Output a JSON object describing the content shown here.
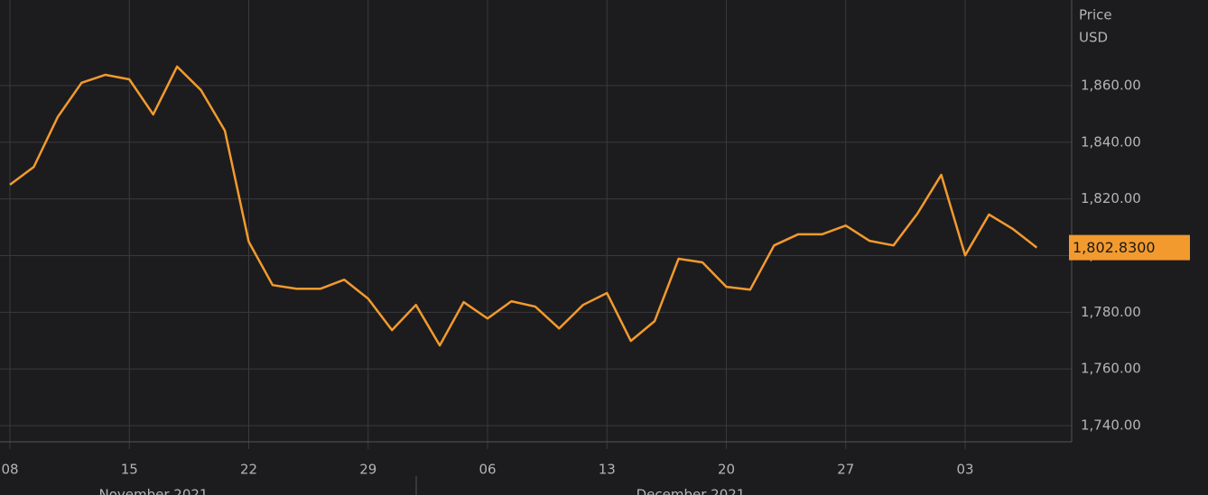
{
  "chart_data": {
    "type": "line",
    "y_axis_title": [
      "Price",
      "USD"
    ],
    "categories": [
      "08",
      null,
      null,
      null,
      null,
      "15",
      null,
      null,
      null,
      null,
      "22",
      null,
      null,
      null,
      null,
      "29",
      null,
      null,
      null,
      null,
      "06",
      null,
      null,
      null,
      null,
      "13",
      null,
      null,
      null,
      null,
      "20",
      null,
      null,
      null,
      null,
      "27",
      null,
      null,
      null,
      null,
      "03",
      null,
      null,
      null
    ],
    "month_labels": [
      "November 2021",
      "December 2021"
    ],
    "series": [
      {
        "color": "#f39a2e",
        "values": [
          1825.0,
          1831.3,
          1848.9,
          1861.0,
          1863.8,
          1862.2,
          1849.8,
          1866.7,
          1858.4,
          1844.1,
          1804.9,
          1789.6,
          1788.3,
          1788.3,
          1791.5,
          1784.8,
          1773.7,
          1782.6,
          1768.3,
          1783.6,
          1777.8,
          1783.9,
          1782.0,
          1774.3,
          1782.6,
          1786.8,
          1769.9,
          1776.9,
          1798.9,
          1797.6,
          1789.0,
          1788.0,
          1803.6,
          1807.5,
          1807.5,
          1810.6,
          1805.2,
          1803.6,
          1814.8,
          1828.5,
          1800.1,
          1814.5,
          1809.4,
          1802.83
        ]
      }
    ],
    "price_tag": {
      "value": 1802.83,
      "label": "1,802.8300"
    },
    "ylim": [
      1734.3,
      1890.2
    ],
    "yticks": [
      {
        "value": 1740,
        "label": "1,740.00"
      },
      {
        "value": 1760,
        "label": "1,760.00"
      },
      {
        "value": 1780,
        "label": "1,780.00"
      },
      {
        "value": 1800,
        "label": "1,800.00"
      },
      {
        "value": 1820,
        "label": "1,820.00"
      },
      {
        "value": 1840,
        "label": "1,840.00"
      },
      {
        "value": 1860,
        "label": "1,860.00"
      }
    ],
    "grid": true
  }
}
